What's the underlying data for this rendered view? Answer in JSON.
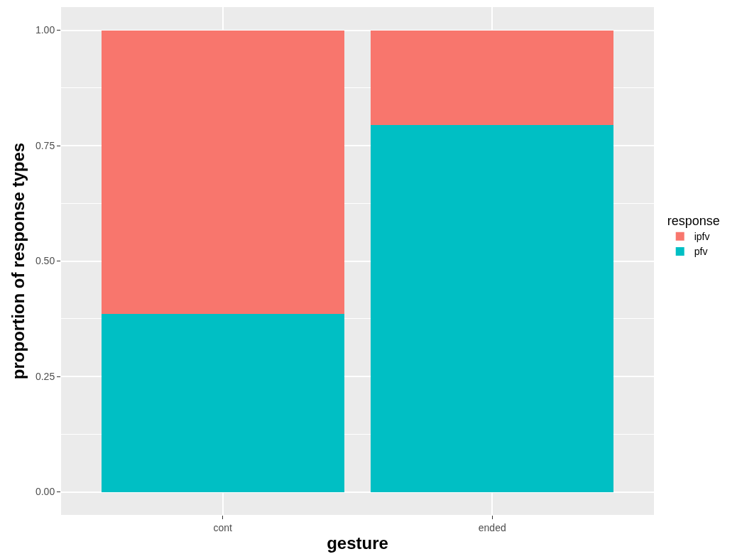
{
  "chart_data": {
    "type": "bar",
    "stacked": true,
    "xlabel": "gesture",
    "ylabel": "proportion of response types",
    "legend_title": "response",
    "categories": [
      "cont",
      "ended"
    ],
    "series": [
      {
        "name": "pfv",
        "color": "#00bfc4",
        "values": [
          0.385,
          0.795
        ]
      },
      {
        "name": "ipfv",
        "color": "#f8766d",
        "values": [
          0.615,
          0.205
        ]
      }
    ],
    "ylim": [
      -0.05,
      1.05
    ],
    "yticks": [
      {
        "value": 0,
        "label": "0.00"
      },
      {
        "value": 0.25,
        "label": "0.25"
      },
      {
        "value": 0.5,
        "label": "0.50"
      },
      {
        "value": 0.75,
        "label": "0.75"
      },
      {
        "value": 1,
        "label": "1.00"
      }
    ],
    "grid": true,
    "legend": "right"
  }
}
